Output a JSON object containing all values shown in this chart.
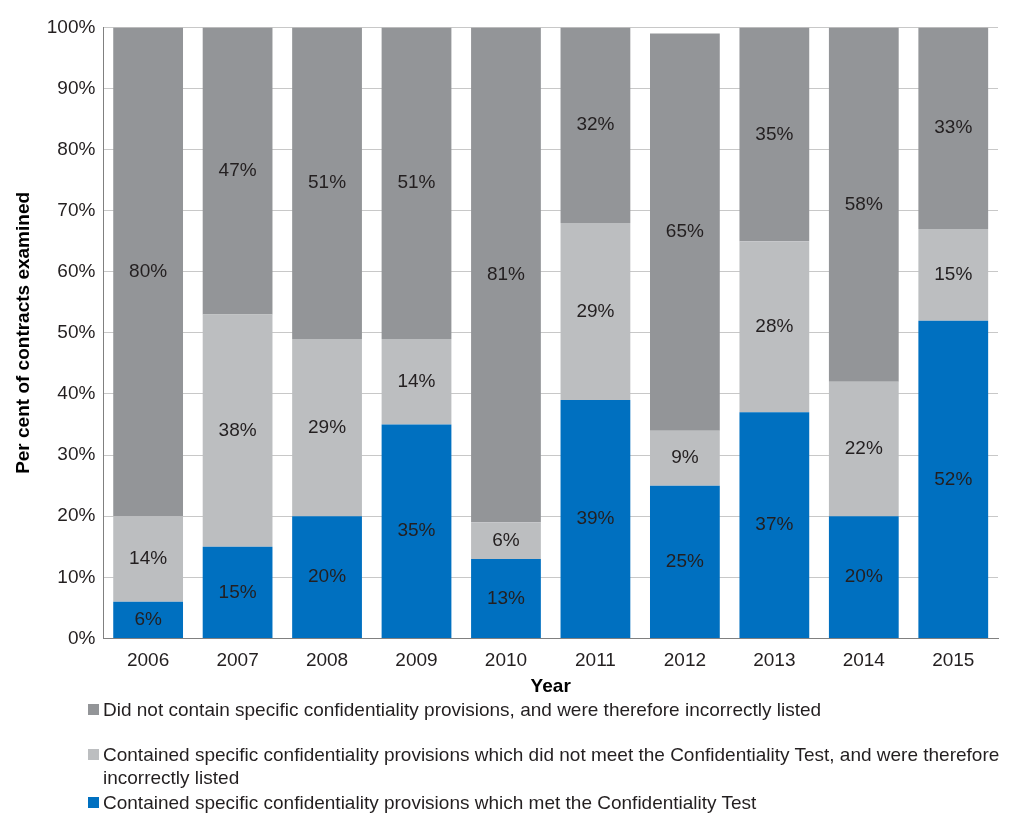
{
  "chart_data": {
    "type": "bar",
    "stacked": true,
    "xlabel": "Year",
    "ylabel": "Per cent of contracts examined",
    "categories": [
      "2006",
      "2007",
      "2008",
      "2009",
      "2010",
      "2011",
      "2012",
      "2013",
      "2014",
      "2015"
    ],
    "series": [
      {
        "name": "Contained specific confidentiality provisions which met the Confidentiality Test",
        "color": "#0070c0",
        "values": [
          6,
          15,
          20,
          35,
          13,
          39,
          25,
          37,
          20,
          52
        ],
        "value_labels": [
          "6%",
          "15%",
          "20%",
          "35%",
          "13%",
          "39%",
          "25%",
          "37%",
          "20%",
          "52%"
        ]
      },
      {
        "name": "Contained specific confidentiality provisions which did not meet the Confidentiality Test, and were therefore incorrectly listed",
        "color": "#bcbec0",
        "values": [
          14,
          38,
          29,
          14,
          6,
          29,
          9,
          28,
          22,
          15
        ],
        "value_labels": [
          "14%",
          "38%",
          "29%",
          "14%",
          "6%",
          "29%",
          "9%",
          "28%",
          "22%",
          "15%"
        ]
      },
      {
        "name": "Did not contain specific confidentiality provisions, and were therefore incorrectly listed",
        "color": "#939598",
        "values": [
          80,
          47,
          51,
          51,
          81,
          32,
          65,
          35,
          58,
          33
        ],
        "value_labels": [
          "80%",
          "47%",
          "51%",
          "51%",
          "81%",
          "32%",
          "65%",
          "35%",
          "58%",
          "33%"
        ]
      }
    ],
    "ylim": [
      0,
      100
    ],
    "yticks": [
      {
        "value": 0,
        "label": "0%"
      },
      {
        "value": 10,
        "label": "10%"
      },
      {
        "value": 20,
        "label": "20%"
      },
      {
        "value": 30,
        "label": "30%"
      },
      {
        "value": 40,
        "label": "40%"
      },
      {
        "value": 50,
        "label": "50%"
      },
      {
        "value": 60,
        "label": "60%"
      },
      {
        "value": 70,
        "label": "70%"
      },
      {
        "value": 80,
        "label": "80%"
      },
      {
        "value": 90,
        "label": "90%"
      },
      {
        "value": 100,
        "label": "100%"
      }
    ],
    "grid": "y",
    "legend": "bottom"
  }
}
